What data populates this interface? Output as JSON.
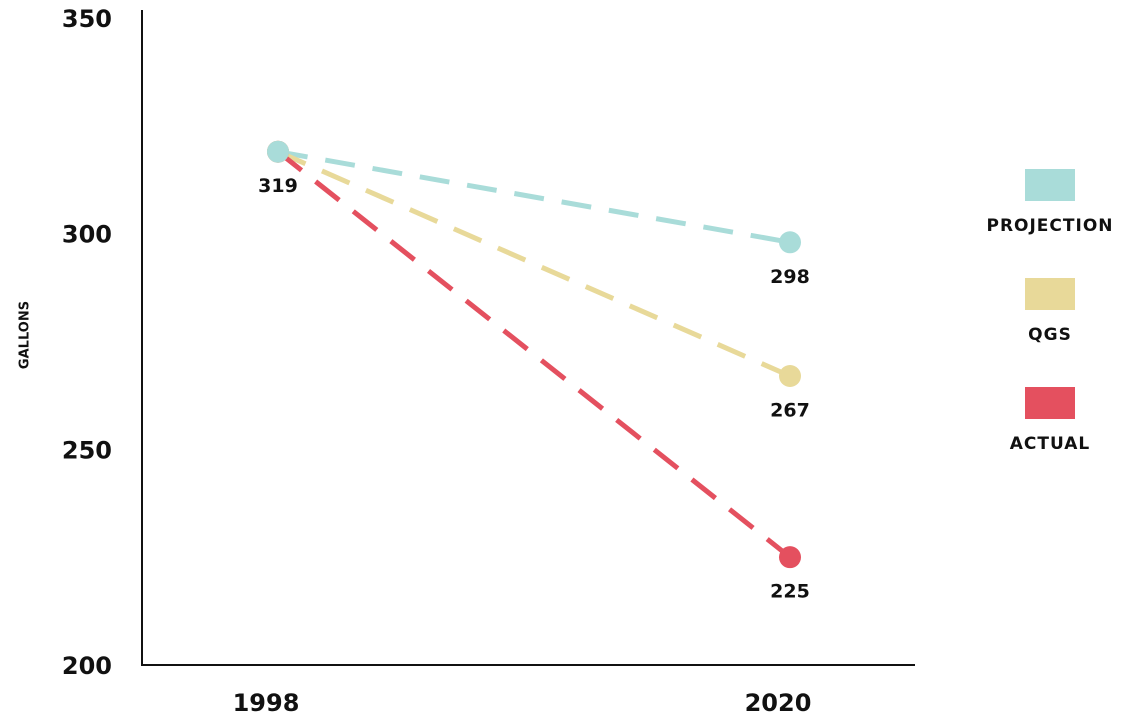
{
  "chart_data": {
    "type": "line",
    "y_label": "GALLONS",
    "categories": [
      "1998",
      "2020"
    ],
    "series": [
      {
        "name": "PROJECTION",
        "color": "#a9dcd9",
        "values": [
          319,
          298
        ]
      },
      {
        "name": "QGS",
        "color": "#e8d999",
        "values": [
          319,
          267
        ]
      },
      {
        "name": "ACTUAL",
        "color": "#e4505f",
        "values": [
          319,
          225
        ]
      }
    ],
    "ylim": [
      200,
      350
    ],
    "yticks": [
      200,
      250,
      300,
      350
    ],
    "grid": false,
    "legend": "right"
  }
}
